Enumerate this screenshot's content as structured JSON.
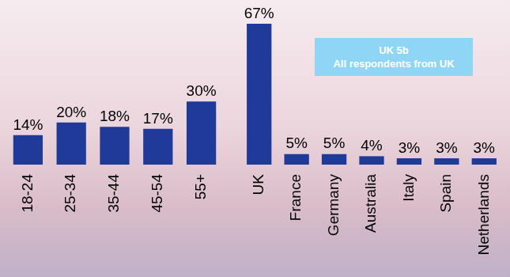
{
  "chart_data": [
    {
      "type": "bar",
      "categories": [
        "18-24",
        "25-34",
        "35-44",
        "45-54",
        "55+"
      ],
      "values": [
        14,
        20,
        18,
        17,
        30
      ],
      "value_labels": [
        "14%",
        "20%",
        "18%",
        "17%",
        "30%"
      ],
      "color": "#203a9a",
      "data_labels": true,
      "tick_labels": "x",
      "grid": false
    },
    {
      "type": "bar",
      "annotation": [
        "UK 5b",
        "All respondents from UK"
      ],
      "categories": [
        "UK",
        "France",
        "Germany",
        "Australia",
        "Italy",
        "Spain",
        "Netherlands"
      ],
      "values": [
        67,
        5,
        5,
        4,
        3,
        3,
        3
      ],
      "value_labels": [
        "67%",
        "5%",
        "5%",
        "4%",
        "3%",
        "3%",
        "3%"
      ],
      "color": "#203a9a",
      "data_labels": true,
      "tick_labels": "x",
      "grid": false
    }
  ]
}
